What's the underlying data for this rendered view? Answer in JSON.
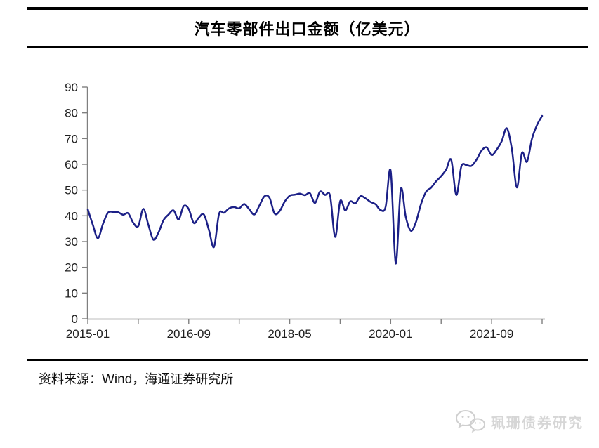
{
  "title": "汽车零部件出口金额（亿美元）",
  "footer": {
    "prefix": "资料来源：",
    "source": "Wind",
    "suffix": "，海通证券研究所"
  },
  "watermark": {
    "icon": "wechat-icon",
    "label": "珮珊债券研究"
  },
  "colors": {
    "line": "#1c2087",
    "axis": "#7f7f7f",
    "tick_text": "#1f1f1f",
    "rule": "#000000",
    "watermark": "#d6d6d6"
  },
  "chart_data": {
    "type": "line",
    "title": "汽车零部件出口金额（亿美元）",
    "xlabel": "",
    "ylabel": "",
    "ylim": [
      0,
      90
    ],
    "y_ticks": [
      0,
      10,
      20,
      30,
      40,
      50,
      60,
      70,
      80,
      90
    ],
    "grid": false,
    "legend": false,
    "x_tick_months": [
      0,
      10,
      20,
      30,
      40,
      50,
      60,
      70,
      80,
      90
    ],
    "x_tick_label_months": [
      0,
      20,
      40,
      60,
      80
    ],
    "x_tick_labels": [
      "2015-01",
      "2016-09",
      "2018-05",
      "2020-01",
      "2021-09"
    ],
    "x": [
      "2015-01",
      "2015-02",
      "2015-03",
      "2015-04",
      "2015-05",
      "2015-06",
      "2015-07",
      "2015-08",
      "2015-09",
      "2015-10",
      "2015-11",
      "2015-12",
      "2016-01",
      "2016-02",
      "2016-03",
      "2016-04",
      "2016-05",
      "2016-06",
      "2016-07",
      "2016-08",
      "2016-09",
      "2016-10",
      "2016-11",
      "2016-12",
      "2017-01",
      "2017-02",
      "2017-03",
      "2017-04",
      "2017-05",
      "2017-06",
      "2017-07",
      "2017-08",
      "2017-09",
      "2017-10",
      "2017-11",
      "2017-12",
      "2018-01",
      "2018-02",
      "2018-03",
      "2018-04",
      "2018-05",
      "2018-06",
      "2018-07",
      "2018-08",
      "2018-09",
      "2018-10",
      "2018-11",
      "2018-12",
      "2019-01",
      "2019-02",
      "2019-03",
      "2019-04",
      "2019-05",
      "2019-06",
      "2019-07",
      "2019-08",
      "2019-09",
      "2019-10",
      "2019-11",
      "2019-12",
      "2020-01",
      "2020-02",
      "2020-03",
      "2020-04",
      "2020-05",
      "2020-06",
      "2020-07",
      "2020-08",
      "2020-09",
      "2020-10",
      "2020-11",
      "2020-12",
      "2021-01",
      "2021-02",
      "2021-03",
      "2021-04",
      "2021-05",
      "2021-06",
      "2021-07",
      "2021-08",
      "2021-09",
      "2021-10",
      "2021-11",
      "2021-12",
      "2022-01",
      "2022-02",
      "2022-03",
      "2022-04",
      "2022-05",
      "2022-06",
      "2022-07"
    ],
    "series": [
      {
        "name": "汽车零部件出口金额（亿美元）",
        "values": [
          42.5,
          36.5,
          31.3,
          36.8,
          41.2,
          41.5,
          41.4,
          40.4,
          41.0,
          37.3,
          36.0,
          42.7,
          36.5,
          30.7,
          33.5,
          38.3,
          40.5,
          42.1,
          38.6,
          43.8,
          42.6,
          37.2,
          39.3,
          40.5,
          34.5,
          27.9,
          40.7,
          41.2,
          42.9,
          43.4,
          42.9,
          44.6,
          42.5,
          40.5,
          44.0,
          47.6,
          47.0,
          40.9,
          41.8,
          45.5,
          47.8,
          48.2,
          48.6,
          48.0,
          48.8,
          45.0,
          49.4,
          48.1,
          47.8,
          31.8,
          45.7,
          42.1,
          45.6,
          44.8,
          47.6,
          46.8,
          45.4,
          44.5,
          42.2,
          43.5,
          57.5,
          21.5,
          50.3,
          39.5,
          34.2,
          37.5,
          44.5,
          49.3,
          50.9,
          53.4,
          55.4,
          58.0,
          61.7,
          48.1,
          59.2,
          59.7,
          59.4,
          61.8,
          65.3,
          66.6,
          63.6,
          65.7,
          69.0,
          74.0,
          66.0,
          51.0,
          64.4,
          61.0,
          70.0,
          75.3,
          78.8
        ]
      }
    ]
  }
}
